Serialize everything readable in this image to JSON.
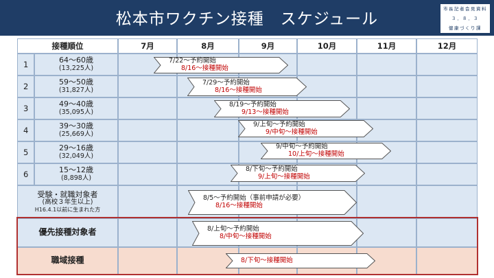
{
  "header": {
    "title": "松本市ワクチン接種　スケジュール",
    "badge": [
      "市長記者会見資料",
      "３．８．３",
      "健康づくり課"
    ]
  },
  "table": {
    "columns": [
      "接種順位",
      "7月",
      "8月",
      "9月",
      "10月",
      "11月",
      "12月"
    ],
    "rows": [
      {
        "num": "1",
        "lines": [
          "64～60歳",
          "(13,225人)"
        ],
        "bar": {
          "l1": "7/22～予約開始",
          "l2": "8/16～接種開始"
        }
      },
      {
        "num": "2",
        "lines": [
          "59～50歳",
          "(31,827人)"
        ],
        "bar": {
          "l1": "7/29～予約開始",
          "l2": "8/16～接種開始"
        }
      },
      {
        "num": "3",
        "lines": [
          "49～40歳",
          "(35,095人)"
        ],
        "bar": {
          "l1": "8/19～予約開始",
          "l2": "9/13～接種開始"
        }
      },
      {
        "num": "4",
        "lines": [
          "39～30歳",
          "(25,669人)"
        ],
        "bar": {
          "l1": "9/上旬～予約開始",
          "l2": "9/中旬～接種開始"
        }
      },
      {
        "num": "5",
        "lines": [
          "29～16歳",
          "(32,049人)"
        ],
        "bar": {
          "l1": "9/中旬～予約開始",
          "l2": "10/上旬～接種開始"
        }
      },
      {
        "num": "6",
        "lines": [
          "15～12歳",
          "(8,898人)"
        ],
        "bar": {
          "l1": "8/下旬～予約開始",
          "l2": "9/上旬～接種開始"
        }
      },
      {
        "num": "",
        "lines": [
          "受験・就職対象者",
          "(高校３年生以上)",
          "H16.4.1以前に生まれた方"
        ],
        "bar": {
          "l1": "8/5～予約開始（事前申請が必要）",
          "l2": "8/16～接種開始"
        }
      },
      {
        "num": "",
        "lines": [
          "優先接種対象者"
        ],
        "bar": {
          "l1": "8/上旬～予約開始",
          "l2": "8/中旬～接種開始"
        }
      },
      {
        "num": "",
        "lines": [
          "職域接種"
        ],
        "bar": {
          "l1": "",
          "l2": "8/下旬～接種開始"
        }
      }
    ]
  },
  "colors": {
    "banner": "#1f3d66",
    "row_fill": "#dce7f3",
    "highlight_row_fill": "#f7dccf",
    "highlight_border": "#b03030",
    "start_text": "#c00000"
  }
}
